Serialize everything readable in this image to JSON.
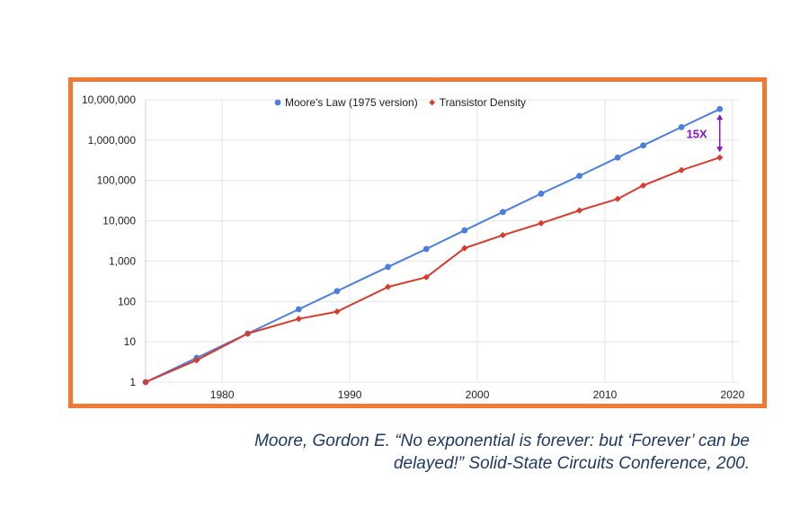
{
  "chart_data": {
    "type": "line",
    "title": "",
    "xlabel": "",
    "ylabel": "",
    "x_scale": "linear",
    "y_scale": "log",
    "xlim": [
      1974,
      2020.5
    ],
    "ylim": [
      1,
      10000000
    ],
    "x_ticks": [
      "1980",
      "1990",
      "2000",
      "2010",
      "2020"
    ],
    "y_ticks": [
      "1",
      "10",
      "100",
      "1,000",
      "10,000",
      "100,000",
      "1,000,000",
      "10,000,000"
    ],
    "grid": "on",
    "legend_position": "top-center",
    "series": [
      {
        "name": "Moore's Law (1975 version)",
        "color": "#4a7fe0",
        "marker": "circle",
        "points": [
          [
            1974,
            1
          ],
          [
            1978,
            4
          ],
          [
            1982,
            16
          ],
          [
            1986,
            64
          ],
          [
            1989,
            180
          ],
          [
            1993,
            720
          ],
          [
            1996,
            2000
          ],
          [
            1999,
            5800
          ],
          [
            2002,
            16500
          ],
          [
            2005,
            47000
          ],
          [
            2008,
            130000
          ],
          [
            2011,
            370000
          ],
          [
            2013,
            740000
          ],
          [
            2016,
            2100000
          ],
          [
            2019,
            5900000
          ]
        ]
      },
      {
        "name": "Transistor Density",
        "color": "#d93a2b",
        "marker": "diamond",
        "points": [
          [
            1974,
            1
          ],
          [
            1978,
            3.5
          ],
          [
            1982,
            16
          ],
          [
            1986,
            37
          ],
          [
            1989,
            56
          ],
          [
            1993,
            230
          ],
          [
            1996,
            400
          ],
          [
            1999,
            2100
          ],
          [
            2002,
            4400
          ],
          [
            2005,
            8700
          ],
          [
            2008,
            18000
          ],
          [
            2011,
            35000
          ],
          [
            2013,
            75000
          ],
          [
            2016,
            180000
          ],
          [
            2019,
            370000
          ]
        ]
      }
    ],
    "annotations": [
      {
        "text": "15X",
        "color": "#8a10c9",
        "x": 2019,
        "y_from": 370000,
        "y_to": 5900000
      }
    ]
  },
  "citation": {
    "line1": "Moore, Gordon E. “No exponential is forever: but ‘Forever’ can be",
    "line2": "delayed!” Solid-State Circuits Conference, 200."
  }
}
